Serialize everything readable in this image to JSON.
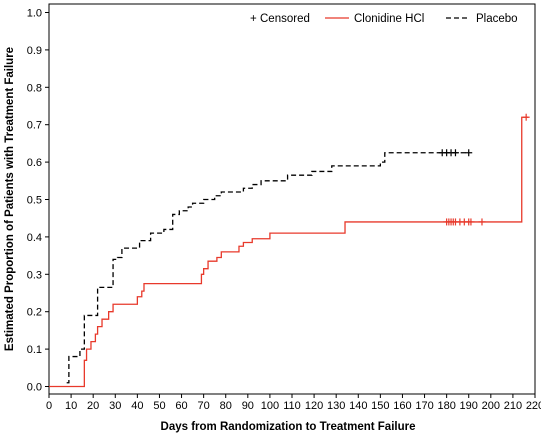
{
  "chart_data": {
    "type": "line",
    "step": true,
    "title": "",
    "xlabel": "Days from Randomization to Treatment Failure",
    "ylabel": "Estimated Proportion of Patients with Treatment Failure",
    "xlim": [
      0,
      220
    ],
    "ylim": [
      0,
      1.0
    ],
    "x_ticks": [
      "0",
      "10",
      "20",
      "30",
      "40",
      "50",
      "60",
      "70",
      "80",
      "90",
      "100",
      "110",
      "120",
      "130",
      "140",
      "150",
      "160",
      "170",
      "180",
      "190",
      "200",
      "210",
      "220"
    ],
    "y_ticks": [
      "0.0",
      "0.1",
      "0.2",
      "0.3",
      "0.4",
      "0.5",
      "0.6",
      "0.7",
      "0.8",
      "0.9",
      "1.0"
    ],
    "grid": false,
    "legend": {
      "placement": "top-right",
      "censored_symbol": "+",
      "censored_label": "Censored",
      "entries": [
        "Clonidine HCl",
        "Placebo"
      ]
    },
    "series": [
      {
        "name": "Clonidine HCl",
        "color": "#e8392b",
        "dash": "solid",
        "points": [
          [
            0,
            0
          ],
          [
            15,
            0
          ],
          [
            16,
            0.07
          ],
          [
            17,
            0.1
          ],
          [
            19,
            0.12
          ],
          [
            21,
            0.14
          ],
          [
            22,
            0.16
          ],
          [
            24,
            0.18
          ],
          [
            26,
            0.18
          ],
          [
            27,
            0.2
          ],
          [
            29,
            0.22
          ],
          [
            38,
            0.22
          ],
          [
            40,
            0.24
          ],
          [
            42,
            0.255
          ],
          [
            43,
            0.275
          ],
          [
            68,
            0.275
          ],
          [
            69,
            0.3
          ],
          [
            70,
            0.315
          ],
          [
            72,
            0.335
          ],
          [
            76,
            0.345
          ],
          [
            78,
            0.36
          ],
          [
            86,
            0.375
          ],
          [
            88,
            0.385
          ],
          [
            92,
            0.395
          ],
          [
            100,
            0.41
          ],
          [
            132,
            0.41
          ],
          [
            134,
            0.44
          ],
          [
            213,
            0.44
          ],
          [
            214,
            0.72
          ],
          [
            217,
            0.72
          ]
        ],
        "censored": [
          180,
          181,
          182,
          183,
          184,
          186,
          188,
          190,
          191,
          196,
          216
        ]
      },
      {
        "name": "Placebo",
        "color": "#000000",
        "dash": "dashed",
        "points": [
          [
            8,
            0.01
          ],
          [
            9,
            0.08
          ],
          [
            14,
            0.1
          ],
          [
            16,
            0.19
          ],
          [
            20,
            0.19
          ],
          [
            22,
            0.265
          ],
          [
            27,
            0.265
          ],
          [
            29,
            0.34
          ],
          [
            31,
            0.345
          ],
          [
            33,
            0.37
          ],
          [
            38,
            0.37
          ],
          [
            41,
            0.39
          ],
          [
            46,
            0.41
          ],
          [
            52,
            0.42
          ],
          [
            56,
            0.46
          ],
          [
            59,
            0.47
          ],
          [
            63,
            0.48
          ],
          [
            65,
            0.49
          ],
          [
            70,
            0.5
          ],
          [
            75,
            0.51
          ],
          [
            78,
            0.52
          ],
          [
            88,
            0.53
          ],
          [
            92,
            0.54
          ],
          [
            96,
            0.55
          ],
          [
            108,
            0.565
          ],
          [
            119,
            0.575
          ],
          [
            128,
            0.59
          ],
          [
            150,
            0.6
          ],
          [
            152,
            0.625
          ],
          [
            190,
            0.625
          ]
        ],
        "censored": [
          178,
          180,
          182,
          184,
          190
        ]
      }
    ]
  }
}
